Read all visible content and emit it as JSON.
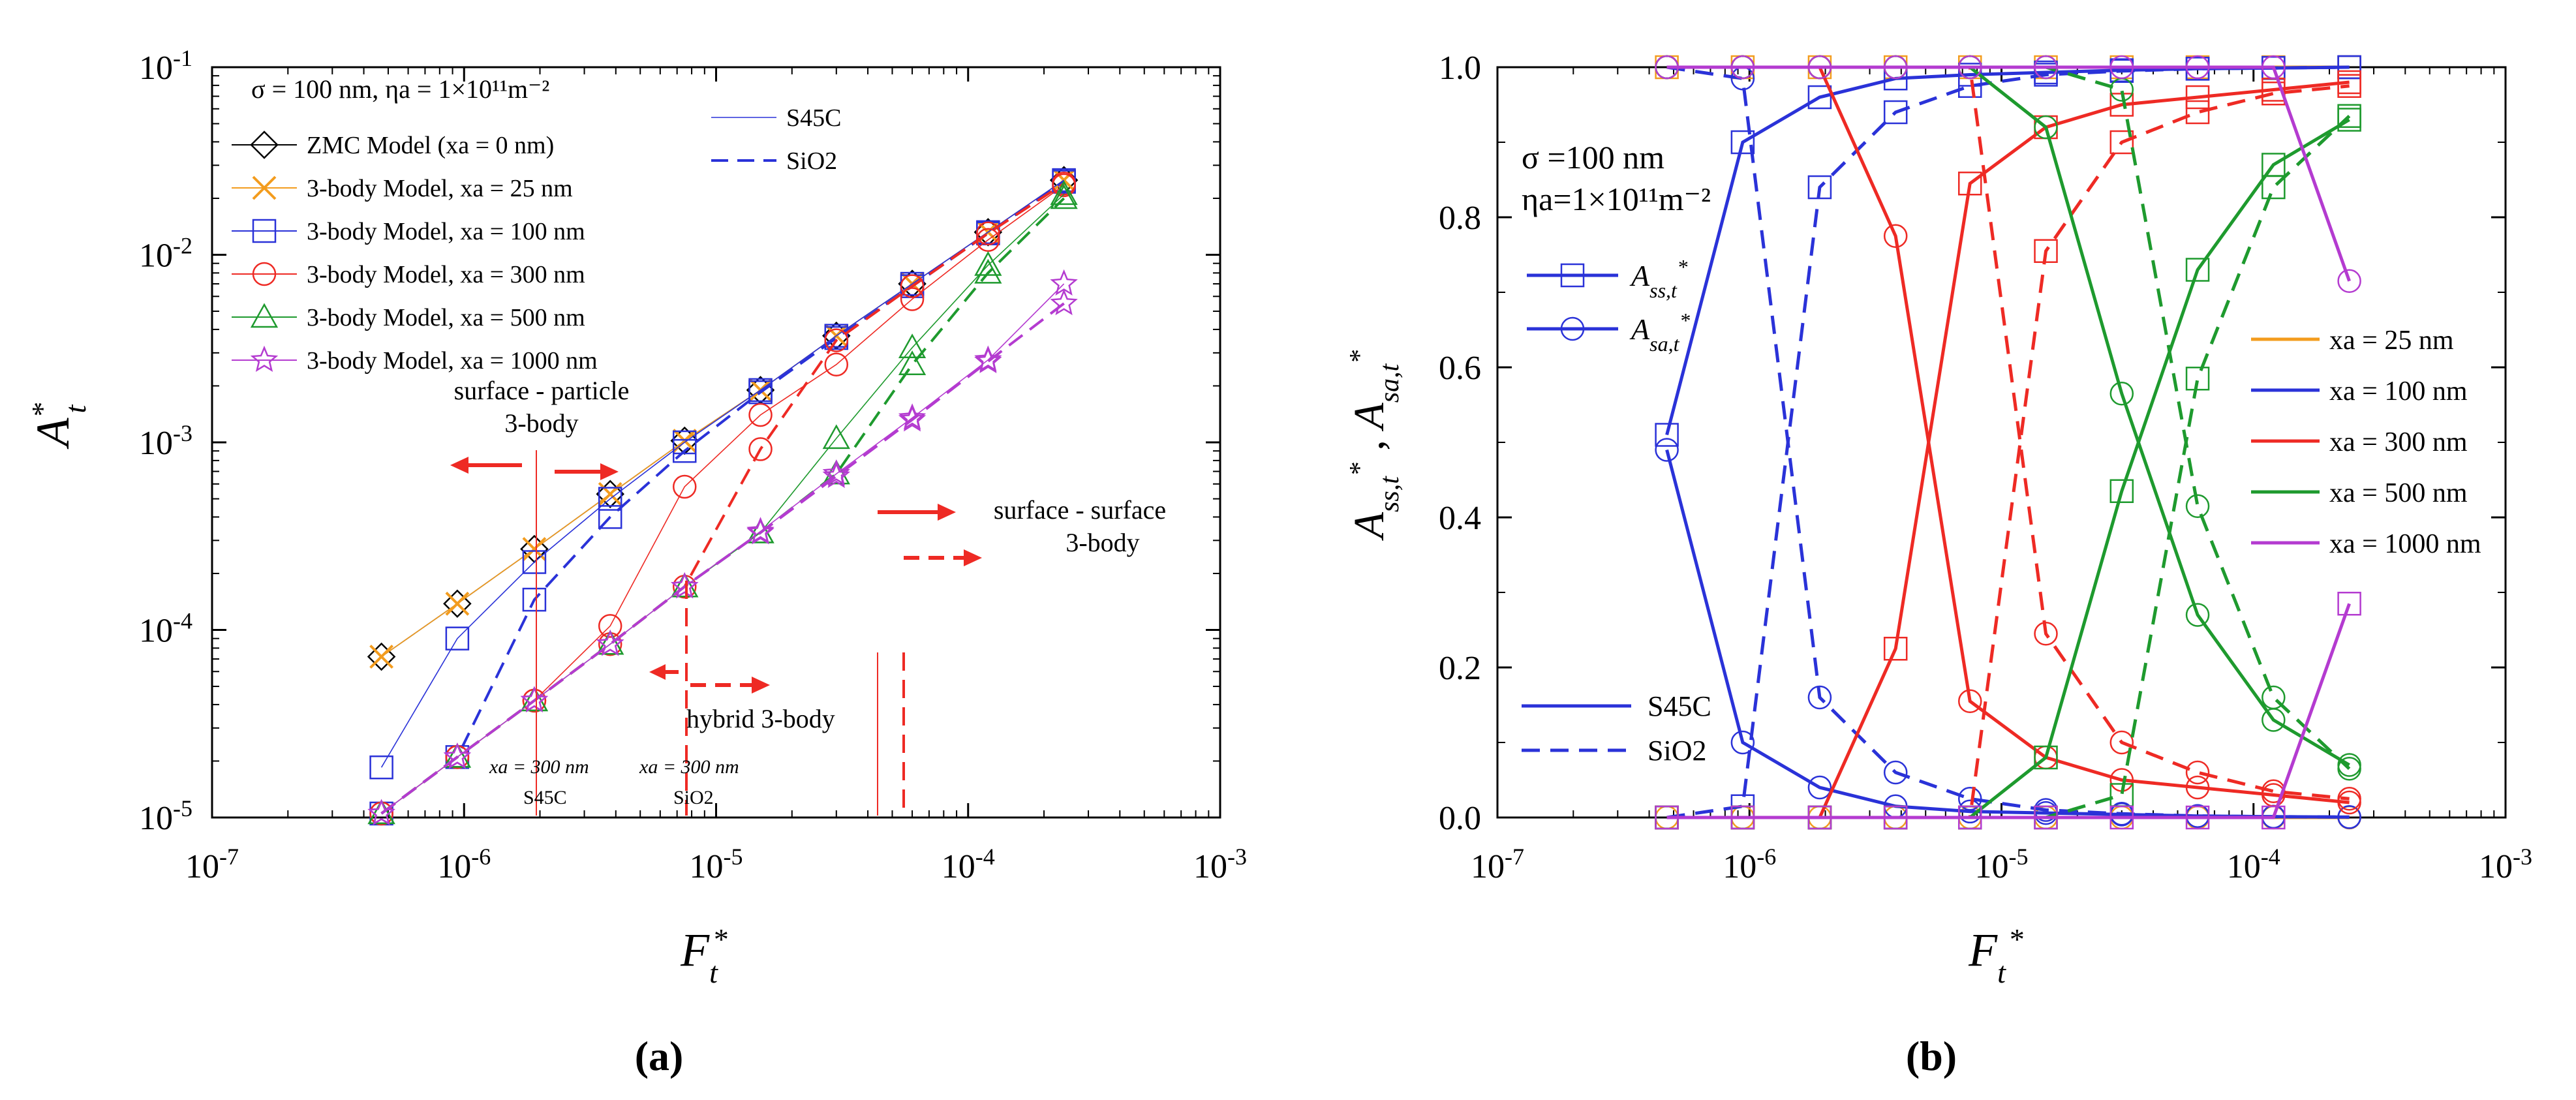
{
  "panels": {
    "a_label": "(a)",
    "b_label": "(b)"
  },
  "annotations_a": {
    "params": "σ = 100 nm, ηa = 1×10¹¹m⁻²",
    "surface_particle_1": "surface - particle",
    "surface_particle_2": "3-body",
    "surface_surface_1": "surface - surface",
    "surface_surface_2": "3-body",
    "hybrid": "hybrid 3-body",
    "xa300_s45c_1": "xa = 300 nm",
    "xa300_s45c_2": "S45C",
    "xa300_sio2_1": "xa = 300 nm",
    "xa300_sio2_2": "SiO2"
  },
  "annotations_b": {
    "sigma": "σ =100 nm",
    "eta": "ηa=1×10¹¹m⁻²"
  },
  "colors": {
    "zmc": "#000000",
    "xa25": "#F39C1E",
    "xa100": "#2A32D8",
    "xa300": "#EE2A24",
    "xa500": "#1E9A2E",
    "xa1000": "#B43BD0",
    "arrow": "#EE2A24"
  },
  "chart_data": [
    {
      "type": "line",
      "title": "",
      "xlabel": "Ft*",
      "ylabel": "At*",
      "xscale": "log",
      "yscale": "log",
      "xlim": [
        1e-07,
        0.001
      ],
      "ylim": [
        1e-05,
        0.1
      ],
      "x_ticks": [
        "10-7",
        "10-6",
        "10-5",
        "10-4",
        "10-3"
      ],
      "y_ticks": [
        "10-5",
        "10-4",
        "10-3",
        "10-2",
        "10-1"
      ],
      "x": [
        4.7e-07,
        9.4e-07,
        1.9e-06,
        3.8e-06,
        7.5e-06,
        1.5e-05,
        3e-05,
        6e-05,
        0.00012,
        0.00024
      ],
      "legend": [
        "ZMC Model (xa = 0 nm)",
        "3-body Model, xa = 25 nm",
        "3-body Model, xa = 100 nm",
        "3-body Model, xa = 300 nm",
        "3-body Model, xa = 500 nm",
        "3-body Model, xa = 1000 nm"
      ],
      "line_legend": [
        "S45C",
        "SiO2"
      ],
      "series": [
        {
          "name": "ZMC Model (xa = 0 nm)",
          "material": "S45C",
          "values": [
            7.2e-05,
            0.000138,
            0.00027,
            0.00053,
            0.00102,
            0.0019,
            0.0037,
            0.007,
            0.0132,
            0.025
          ]
        },
        {
          "name": "3-body Model, xa = 25 nm",
          "material": "S45C",
          "values": [
            7.2e-05,
            0.000138,
            0.00027,
            0.00053,
            0.00102,
            0.0019,
            0.0037,
            0.007,
            0.0132,
            0.025
          ]
        },
        {
          "name": "3-body Model, xa = 100 nm",
          "material": "S45C",
          "values": [
            1.85e-05,
            9e-05,
            0.00023,
            0.0005,
            0.001,
            0.0019,
            0.0037,
            0.007,
            0.0132,
            0.025
          ]
        },
        {
          "name": "3-body Model, xa = 100 nm",
          "material": "SiO2",
          "values": [
            1.05e-05,
            2.1e-05,
            0.000145,
            0.0004,
            0.0009,
            0.00185,
            0.0036,
            0.0068,
            0.013,
            0.0245
          ]
        },
        {
          "name": "3-body Model, xa = 300 nm",
          "material": "S45C",
          "values": [
            1.05e-05,
            2.1e-05,
            4.2e-05,
            0.000105,
            0.00058,
            0.0014,
            0.0026,
            0.0058,
            0.012,
            0.0235
          ]
        },
        {
          "name": "3-body Model, xa = 300 nm",
          "material": "SiO2",
          "values": [
            1.05e-05,
            2.1e-05,
            4.2e-05,
            8.4e-05,
            0.00017,
            0.00092,
            0.0035,
            0.0068,
            0.013,
            0.024
          ]
        },
        {
          "name": "3-body Model, xa = 500 nm",
          "material": "S45C",
          "values": [
            1.05e-05,
            2.1e-05,
            4.2e-05,
            8.4e-05,
            0.00017,
            0.00033,
            0.00105,
            0.0032,
            0.0088,
            0.021
          ]
        },
        {
          "name": "3-body Model, xa = 500 nm",
          "material": "SiO2",
          "values": [
            1.05e-05,
            2.1e-05,
            4.2e-05,
            8.4e-05,
            0.00017,
            0.00033,
            0.00068,
            0.0026,
            0.008,
            0.02
          ]
        },
        {
          "name": "3-body Model, xa = 1000 nm",
          "material": "S45C",
          "values": [
            1.05e-05,
            2.1e-05,
            4.2e-05,
            8.4e-05,
            0.00017,
            0.000335,
            0.00068,
            0.00135,
            0.00275,
            0.007
          ]
        },
        {
          "name": "3-body Model, xa = 1000 nm",
          "material": "SiO2",
          "values": [
            1.05e-05,
            2.1e-05,
            4.2e-05,
            8.4e-05,
            0.00017,
            0.00033,
            0.00066,
            0.00132,
            0.0027,
            0.0055
          ]
        }
      ]
    },
    {
      "type": "line",
      "title": "",
      "xlabel": "Ft*",
      "ylabel": "Ass,t*, Asa,t*",
      "xscale": "log",
      "yscale": "linear",
      "xlim": [
        1e-07,
        0.001
      ],
      "ylim": [
        0,
        1
      ],
      "x_ticks": [
        "10-7",
        "10-6",
        "10-5",
        "10-4",
        "10-3"
      ],
      "y_ticks": [
        "0.0",
        "0.2",
        "0.4",
        "0.6",
        "0.8",
        "1.0"
      ],
      "x": [
        4.7e-07,
        9.4e-07,
        1.9e-06,
        3.8e-06,
        7.5e-06,
        1.5e-05,
        3e-05,
        6e-05,
        0.00012,
        0.00024
      ],
      "legend": [
        "xa = 25 nm",
        "xa = 100 nm",
        "xa = 300 nm",
        "xa = 500 nm",
        "xa = 1000 nm"
      ],
      "marker_legend": [
        "Ass,t*",
        "Asa,t*"
      ],
      "line_legend": [
        "S45C",
        "SiO2"
      ],
      "series": [
        {
          "name": "xa = 25 nm",
          "material": "S45C",
          "quantity": "Ass,t*",
          "values": [
            1,
            1,
            1,
            1,
            1,
            1,
            1,
            1,
            1,
            1
          ]
        },
        {
          "name": "xa = 25 nm",
          "material": "S45C",
          "quantity": "Asa,t*",
          "values": [
            0,
            0,
            0,
            0,
            0,
            0,
            0,
            0,
            0,
            0
          ]
        },
        {
          "name": "xa = 100 nm",
          "material": "S45C",
          "quantity": "Ass,t*",
          "values": [
            0.51,
            0.9,
            0.96,
            0.985,
            0.99,
            0.993,
            0.996,
            0.998,
            0.999,
            1
          ]
        },
        {
          "name": "xa = 100 nm",
          "material": "S45C",
          "quantity": "Asa,t*",
          "values": [
            0.49,
            0.1,
            0.04,
            0.015,
            0.008,
            0.006,
            0.004,
            0.002,
            0.001,
            0.0005
          ]
        },
        {
          "name": "xa = 100 nm",
          "material": "SiO2",
          "quantity": "Ass,t*",
          "values": [
            0,
            0.015,
            0.84,
            0.94,
            0.975,
            0.99,
            0.995,
            0.998,
            0.999,
            1
          ]
        },
        {
          "name": "xa = 100 nm",
          "material": "SiO2",
          "quantity": "Asa,t*",
          "values": [
            1,
            0.985,
            0.16,
            0.06,
            0.025,
            0.01,
            0.005,
            0.002,
            0.001,
            0.0005
          ]
        },
        {
          "name": "xa = 300 nm",
          "material": "S45C",
          "quantity": "Ass,t*",
          "values": [
            0,
            0,
            0,
            0.225,
            0.845,
            0.92,
            0.95,
            0.96,
            0.97,
            0.98
          ]
        },
        {
          "name": "xa = 300 nm",
          "material": "S45C",
          "quantity": "Asa,t*",
          "values": [
            1,
            1,
            1,
            0.775,
            0.155,
            0.08,
            0.05,
            0.04,
            0.03,
            0.02
          ]
        },
        {
          "name": "xa = 300 nm",
          "material": "SiO2",
          "quantity": "Ass,t*",
          "values": [
            0,
            0,
            0,
            0,
            0,
            0.755,
            0.9,
            0.94,
            0.965,
            0.975
          ]
        },
        {
          "name": "xa = 300 nm",
          "material": "SiO2",
          "quantity": "Asa,t*",
          "values": [
            1,
            1,
            1,
            1,
            1,
            0.245,
            0.1,
            0.06,
            0.035,
            0.025
          ]
        },
        {
          "name": "xa = 500 nm",
          "material": "S45C",
          "quantity": "Ass,t*",
          "values": [
            0,
            0,
            0,
            0,
            0,
            0.08,
            0.435,
            0.73,
            0.87,
            0.93
          ]
        },
        {
          "name": "xa = 500 nm",
          "material": "S45C",
          "quantity": "Asa,t*",
          "values": [
            1,
            1,
            1,
            1,
            1,
            0.92,
            0.565,
            0.27,
            0.13,
            0.07
          ]
        },
        {
          "name": "xa = 500 nm",
          "material": "SiO2",
          "quantity": "Ass,t*",
          "values": [
            0,
            0,
            0,
            0,
            0,
            0,
            0.03,
            0.585,
            0.84,
            0.935
          ]
        },
        {
          "name": "xa = 500 nm",
          "material": "SiO2",
          "quantity": "Asa,t*",
          "values": [
            1,
            1,
            1,
            1,
            1,
            1,
            0.97,
            0.415,
            0.16,
            0.065
          ]
        },
        {
          "name": "xa = 1000 nm",
          "material": "S45C",
          "quantity": "Ass,t*",
          "values": [
            0,
            0,
            0,
            0,
            0,
            0,
            0,
            0,
            0,
            0.285
          ]
        },
        {
          "name": "xa = 1000 nm",
          "material": "S45C",
          "quantity": "Asa,t*",
          "values": [
            1,
            1,
            1,
            1,
            1,
            1,
            1,
            1,
            1,
            0.715
          ]
        }
      ]
    }
  ]
}
